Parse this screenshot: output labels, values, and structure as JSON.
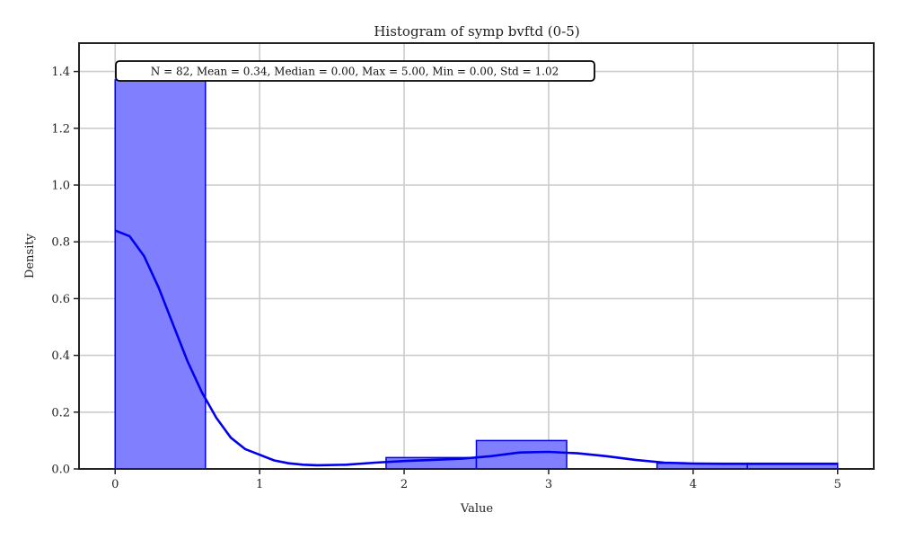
{
  "chart_data": {
    "type": "bar",
    "title": "Histogram of symp bvftd (0-5)",
    "xlabel": "Value",
    "ylabel": "Density",
    "xlim": [
      -0.25,
      5.25
    ],
    "ylim": [
      0,
      1.5
    ],
    "xticks": [
      0,
      1,
      2,
      3,
      4,
      5
    ],
    "yticks": [
      0.0,
      0.2,
      0.4,
      0.6,
      0.8,
      1.0,
      1.2,
      1.4
    ],
    "ytick_labels": [
      "0.0",
      "0.2",
      "0.4",
      "0.6",
      "0.8",
      "1.0",
      "1.2",
      "1.4"
    ],
    "grid": true,
    "bar_color": "#8080ff",
    "edge_color": "#0000ee",
    "bins": [
      {
        "x0": 0.0,
        "x1": 0.625,
        "density": 1.37
      },
      {
        "x0": 0.625,
        "x1": 1.25,
        "density": 0.0
      },
      {
        "x0": 1.25,
        "x1": 1.875,
        "density": 0.0
      },
      {
        "x0": 1.875,
        "x1": 2.5,
        "density": 0.04
      },
      {
        "x0": 2.5,
        "x1": 3.125,
        "density": 0.1
      },
      {
        "x0": 3.125,
        "x1": 3.75,
        "density": 0.0
      },
      {
        "x0": 3.75,
        "x1": 4.375,
        "density": 0.02
      },
      {
        "x0": 4.375,
        "x1": 5.0,
        "density": 0.02
      }
    ],
    "kde": {
      "name": "",
      "x": [
        0.0,
        0.1,
        0.2,
        0.3,
        0.4,
        0.5,
        0.6,
        0.7,
        0.8,
        0.9,
        1.0,
        1.1,
        1.2,
        1.3,
        1.4,
        1.6,
        1.8,
        2.0,
        2.2,
        2.4,
        2.6,
        2.8,
        3.0,
        3.2,
        3.4,
        3.6,
        3.8,
        4.0,
        4.2,
        4.4,
        4.6,
        4.8,
        5.0
      ],
      "y": [
        0.84,
        0.82,
        0.75,
        0.64,
        0.51,
        0.38,
        0.27,
        0.18,
        0.11,
        0.07,
        0.05,
        0.03,
        0.02,
        0.015,
        0.013,
        0.015,
        0.022,
        0.028,
        0.032,
        0.036,
        0.045,
        0.058,
        0.06,
        0.055,
        0.045,
        0.032,
        0.022,
        0.019,
        0.018,
        0.018,
        0.018,
        0.018,
        0.018
      ]
    },
    "stats_annotation": "N = 82, Mean = 0.34, Median = 0.00, Max = 5.00, Min = 0.00, Std = 1.02"
  }
}
